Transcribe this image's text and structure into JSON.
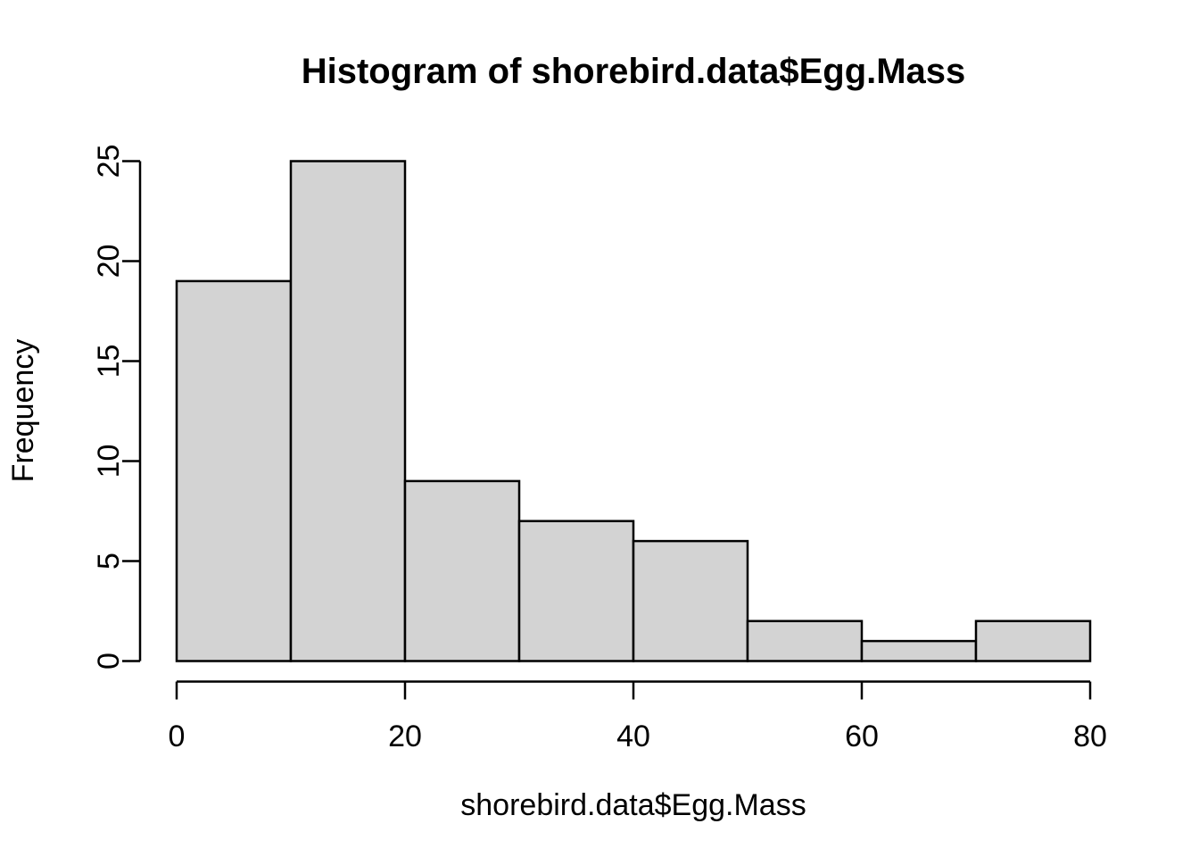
{
  "figure": {
    "background": "#ffffff",
    "text_color": "#000000"
  },
  "chart_data": {
    "type": "bar",
    "subtype": "histogram",
    "title": "Histogram of shorebird.data$Egg.Mass",
    "xlabel": "shorebird.data$Egg.Mass",
    "ylabel": "Frequency",
    "bin_width": 10,
    "bin_edges": [
      0,
      10,
      20,
      30,
      40,
      50,
      60,
      70,
      80
    ],
    "categories": [
      "0-10",
      "10-20",
      "20-30",
      "30-40",
      "40-50",
      "50-60",
      "60-70",
      "70-80"
    ],
    "values": [
      19,
      25,
      9,
      7,
      6,
      2,
      1,
      2
    ],
    "xlim": [
      0,
      80
    ],
    "ylim": [
      0,
      25
    ],
    "x_ticks": [
      0,
      20,
      40,
      60,
      80
    ],
    "y_ticks": [
      0,
      5,
      10,
      15,
      20,
      25
    ],
    "bar_fill": "#d3d3d3",
    "bar_stroke": "#000000",
    "axis_color": "#000000",
    "grid": false,
    "legend": "none"
  }
}
